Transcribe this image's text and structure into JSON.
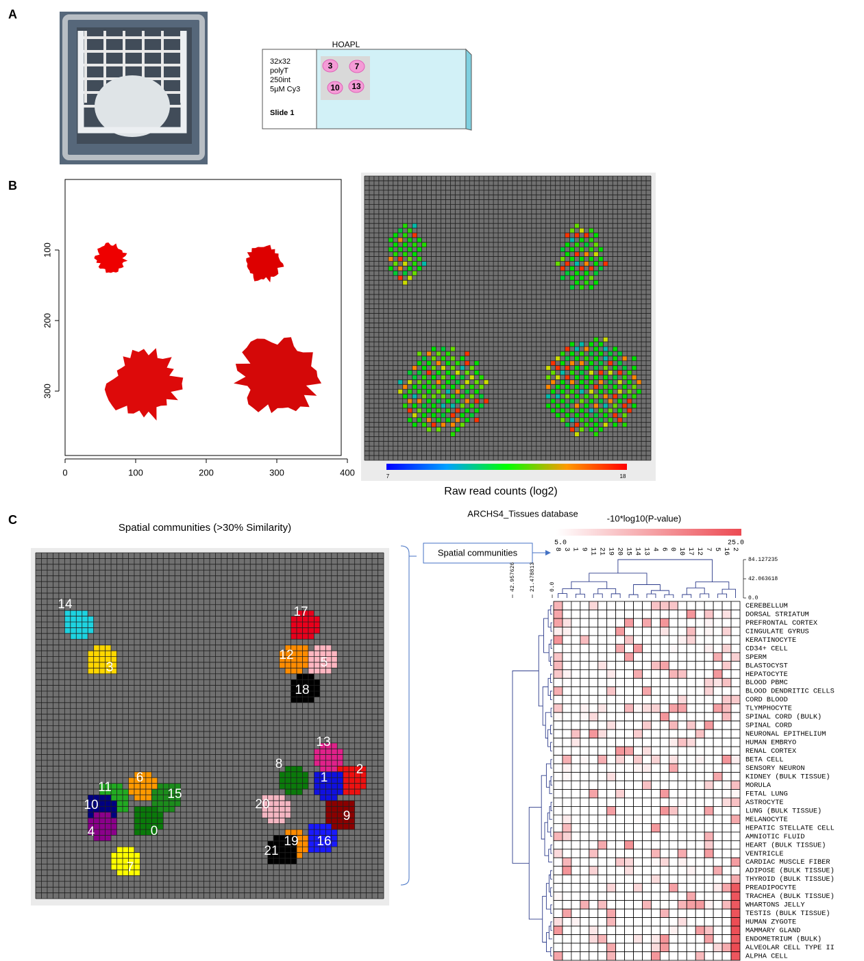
{
  "panel_labels": [
    "A",
    "B",
    "C"
  ],
  "slide": {
    "header": "HOAPL",
    "notes": [
      "32x32",
      "polyT",
      "250int",
      "5µM Cy3"
    ],
    "slide_name": "Slide 1",
    "spots": [
      "3",
      "7",
      "10",
      "13"
    ]
  },
  "image_plot": {
    "xlim": [
      0,
      400
    ],
    "ylim": [
      0,
      400
    ],
    "xticks": [
      0,
      100,
      200,
      300,
      400
    ],
    "yticks": [
      100,
      200,
      300
    ]
  },
  "raw_counts": {
    "colorbar_ticks": [
      7,
      18
    ],
    "caption": "Raw read counts (log2)"
  },
  "communities": {
    "title": "Spatial communities (>30% Similarity)",
    "groups": [
      {
        "label": "14",
        "color": "#1ed3e0"
      },
      {
        "label": "3",
        "color": "#ffd700"
      },
      {
        "label": "17",
        "color": "#e8001c"
      },
      {
        "label": "12",
        "color": "#ff8c00"
      },
      {
        "label": "5",
        "color": "#ffb6c1"
      },
      {
        "label": "18",
        "color": "#000000"
      },
      {
        "label": "13",
        "color": "#e0218a"
      },
      {
        "label": "8",
        "color": "#0b7a0b"
      },
      {
        "label": "2",
        "color": "#ee1111"
      },
      {
        "label": "6",
        "color": "#ff9900"
      },
      {
        "label": "1",
        "color": "#1010e0"
      },
      {
        "label": "11",
        "color": "#22aa22"
      },
      {
        "label": "15",
        "color": "#1c8c1c"
      },
      {
        "label": "10",
        "color": "#000080"
      },
      {
        "label": "20",
        "color": "#f4b6c2"
      },
      {
        "label": "9",
        "color": "#8b0000"
      },
      {
        "label": "4",
        "color": "#8b008b"
      },
      {
        "label": "0",
        "color": "#0a7a0a"
      },
      {
        "label": "19",
        "color": "#ff8c00"
      },
      {
        "label": "16",
        "color": "#1a1aff"
      },
      {
        "label": "21",
        "color": "#000000"
      },
      {
        "label": "7",
        "color": "#ffff00"
      }
    ]
  },
  "enrichment": {
    "database": "ARCHS4_Tissues database",
    "legend_title": "-10*log10(P-value)",
    "colorbar_ticks": [
      {
        "value": 5,
        "label": "5.0"
      },
      {
        "value": 25,
        "label": "25.0"
      }
    ],
    "callout": "Spatial communities",
    "columns": [
      "8",
      "3",
      "1",
      "9",
      "11",
      "21",
      "19",
      "20",
      "15",
      "14",
      "13",
      "4",
      "6",
      "0",
      "10",
      "17",
      "12",
      "7",
      "5",
      "16",
      "2"
    ],
    "col_dendrogram_ticks": [
      {
        "value": 84.127235,
        "label": "84.127235"
      },
      {
        "value": 42.063618,
        "label": "42.063618"
      },
      {
        "value": 0,
        "label": "0.0"
      }
    ],
    "row_dendrogram_ticks": [
      {
        "value": 42.957626,
        "label": "42.957626"
      },
      {
        "value": 21.478813,
        "label": "21.478813"
      },
      {
        "value": 0,
        "label": "0.0"
      }
    ],
    "rows": [
      "CEREBELLUM",
      "DORSAL STRIATUM",
      "PREFRONTAL CORTEX",
      "CINGULATE GYRUS",
      "KERATINOCYTE",
      "CD34+ CELL",
      "SPERM",
      "BLASTOCYST",
      "HEPATOCYTE",
      "BLOOD PBMC",
      "BLOOD DENDRITIC CELLS",
      "CORD BLOOD",
      "TLYMPHOCYTE",
      "SPINAL CORD (BULK)",
      "SPINAL CORD",
      "NEURONAL EPITHELIUM",
      "HUMAN EMBRYO",
      "RENAL CORTEX",
      "BETA CELL",
      "SENSORY NEURON",
      "KIDNEY (BULK TISSUE)",
      "MORULA",
      "FETAL LUNG",
      "ASTROCYTE",
      "LUNG (BULK TISSUE)",
      "MELANOCYTE",
      "HEPATIC STELLATE CELL",
      "AMNIOTIC FLUID",
      "HEART (BULK TISSUE)",
      "VENTRICLE",
      "CARDIAC MUSCLE FIBER",
      "ADIPOSE (BULK TISSUE)",
      "THYROID (BULK TISSUE)",
      "PREADIPOCYTE",
      "TRACHEA (BULK TISSUE)",
      "WHARTONS JELLY",
      "TESTIS (BULK TISSUE)",
      "HUMAN ZYGOTE",
      "MAMMARY GLAND",
      "ENDOMETRIUM (BULK)",
      "ALVEOLAR CELL TYPE II",
      "ALPHA CELL"
    ]
  }
}
